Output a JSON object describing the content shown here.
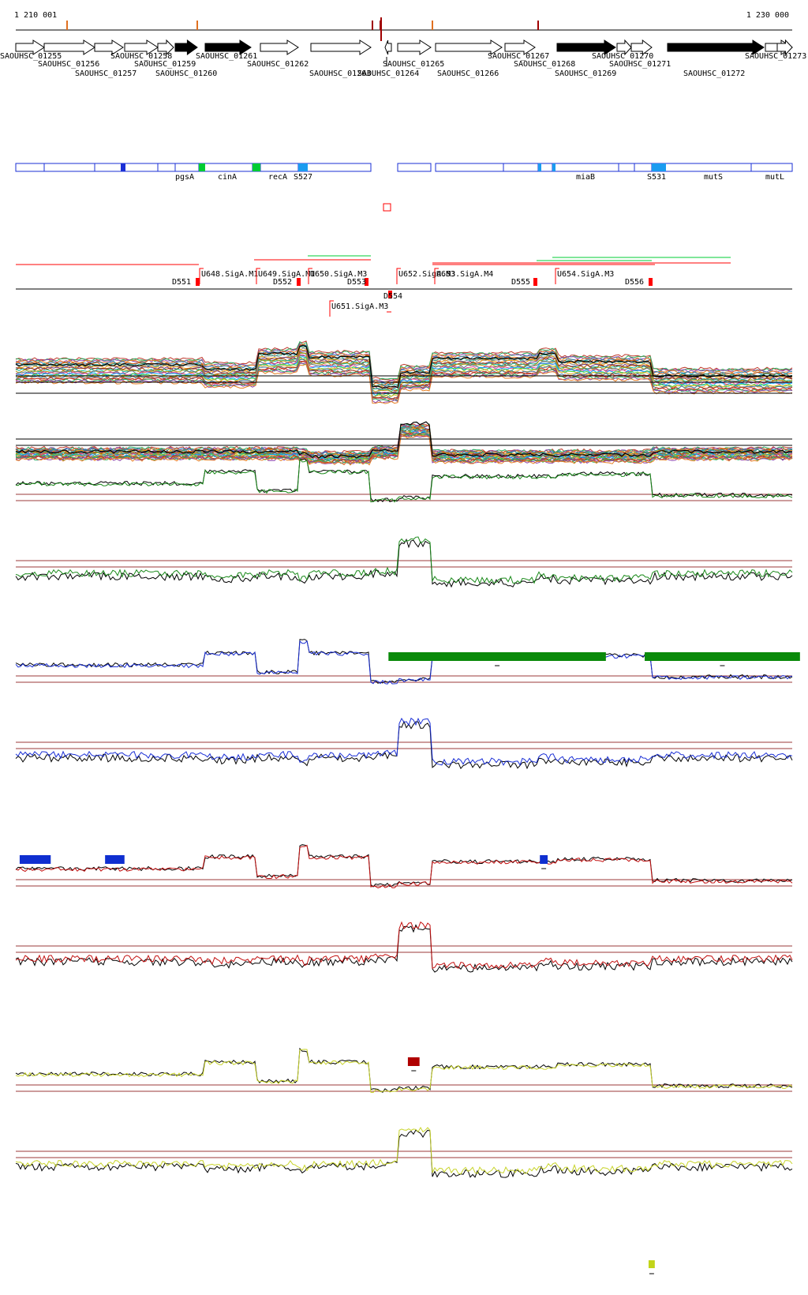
{
  "coords": {
    "start": "1 210 001",
    "end": "1 230 000"
  },
  "colors": {
    "gene_fill": "#000000",
    "operon_stroke": "#1a2fd6",
    "green": "#00cc33",
    "cyan": "#1b9cf0",
    "red": "#ff0000",
    "darkred": "#a00000",
    "track_green": "#1a8a1a",
    "track_blue": "#1a2fd6",
    "track_red": "#c41010",
    "track_yellow": "#c8d42a",
    "threshold": "#9b3a3a",
    "block_green": "#0a8a0a",
    "block_blue": "#0f2fd0",
    "block_red": "#b00000",
    "block_yellow": "#c2d419"
  },
  "genes": [
    {
      "id": "SAOUHSC_01255",
      "row": 0
    },
    {
      "id": "SAOUHSC_01256",
      "row": 1
    },
    {
      "id": "SAOUHSC_01257",
      "row": 2
    },
    {
      "id": "SAOUHSC_01258",
      "row": 0
    },
    {
      "id": "SAOUHSC_01259",
      "row": 1
    },
    {
      "id": "SAOUHSC_01260",
      "row": 2
    },
    {
      "id": "SAOUHSC_01261",
      "row": 0
    },
    {
      "id": "SAOUHSC_01262",
      "row": 1
    },
    {
      "id": "SAOUHSC_01263",
      "row": 2
    },
    {
      "id": "SAOUHSC_01264",
      "row": 2
    },
    {
      "id": "SAOUHSC_01265",
      "row": 1
    },
    {
      "id": "SAOUHSC_01266",
      "row": 2
    },
    {
      "id": "SAOUHSC_01267",
      "row": 0
    },
    {
      "id": "SAOUHSC_01268",
      "row": 1
    },
    {
      "id": "SAOUHSC_01269",
      "row": 2
    },
    {
      "id": "SAOUHSC_01270",
      "row": 0
    },
    {
      "id": "SAOUHSC_01271",
      "row": 1
    },
    {
      "id": "SAOUHSC_01272",
      "row": 2
    },
    {
      "id": "SAOUHSC_01273",
      "row": 0
    }
  ],
  "operon_labels": [
    "pgsA",
    "cinA",
    "recA",
    "S527",
    "miaB",
    "S531",
    "mutS",
    "mutL"
  ],
  "features": {
    "downstream": [
      "D551",
      "D552",
      "D553",
      "D554",
      "D555",
      "D556"
    ],
    "upstream": [
      "U648.SigA.M1",
      "U649.SigA.M1",
      "U650.SigA.M3",
      "U651.SigA.M3",
      "U652.SigA.M3",
      "U653.SigA.M4",
      "U654.SigA.M3"
    ]
  },
  "tracks": [
    {
      "name": "green",
      "color_key": "track_green"
    },
    {
      "name": "blue",
      "color_key": "track_blue"
    },
    {
      "name": "red",
      "color_key": "track_red"
    },
    {
      "name": "yellow",
      "color_key": "track_yellow"
    }
  ],
  "blocks": {
    "green": [
      0.48,
      0.81
    ],
    "blue": [
      0.005,
      0.115,
      0.675
    ],
    "red": [
      0.505
    ],
    "yellow": [
      0.815
    ]
  }
}
